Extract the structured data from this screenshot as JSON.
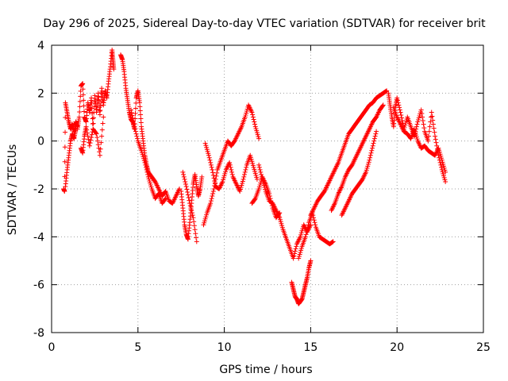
{
  "chart_data": {
    "type": "scatter",
    "title": "Day 296 of 2025, Sidereal Day-to-day VTEC variation (SDTVAR) for receiver brit",
    "xlabel": "GPS time / hours",
    "ylabel": "SDTVAR / TECUs",
    "xlim": [
      0,
      25
    ],
    "ylim": [
      -8,
      4
    ],
    "xticks": [
      0,
      5,
      10,
      15,
      20,
      25
    ],
    "yticks": [
      -8,
      -6,
      -4,
      -2,
      0,
      2,
      4
    ],
    "grid": true,
    "marker": "+",
    "series": [
      {
        "name": "SDTVAR",
        "color": "#ff0000",
        "segments": [
          {
            "x": [
              0.7,
              0.75,
              0.8,
              0.9,
              1.0,
              1.1,
              1.2,
              1.3,
              1.4,
              1.5
            ],
            "y": [
              -2.0,
              -2.1,
              1.6,
              1.2,
              0.8,
              0.5,
              0.7,
              0.4,
              0.8,
              0.6
            ]
          },
          {
            "x": [
              0.8,
              0.9,
              1.0,
              1.1,
              1.2,
              1.3,
              1.4
            ],
            "y": [
              -1.9,
              -1.2,
              -0.6,
              0.0,
              0.3,
              0.1,
              0.5
            ]
          },
          {
            "x": [
              1.5,
              1.6,
              1.7,
              1.8,
              1.9,
              2.0,
              2.1,
              2.2,
              2.3,
              2.4,
              2.5,
              2.6,
              2.7,
              2.8,
              2.9,
              3.0,
              3.1,
              3.2,
              3.3,
              3.4,
              3.5,
              3.55,
              3.6
            ],
            "y": [
              0.5,
              1.0,
              2.3,
              2.4,
              1.0,
              0.8,
              1.6,
              1.2,
              1.8,
              0.5,
              1.9,
              1.2,
              2.0,
              1.1,
              2.2,
              1.5,
              2.1,
              1.8,
              2.5,
              3.1,
              3.8,
              3.4,
              3.0
            ]
          },
          {
            "x": [
              1.7,
              1.8,
              1.9,
              2.0,
              2.2,
              2.4,
              2.6,
              2.8,
              3.0
            ],
            "y": [
              -0.3,
              -0.5,
              0.2,
              0.6,
              -0.2,
              0.5,
              0.3,
              -0.6,
              1.0
            ]
          },
          {
            "x": [
              4.0,
              4.1,
              4.2,
              4.3,
              4.4,
              4.5,
              4.6,
              4.7,
              4.8,
              4.9,
              5.0,
              5.1,
              5.2,
              5.3,
              5.4,
              5.5,
              5.6,
              5.8,
              6.0,
              6.2,
              6.4,
              6.6,
              6.8,
              7.0,
              7.2,
              7.4
            ],
            "y": [
              3.6,
              3.4,
              2.9,
              2.2,
              1.7,
              1.2,
              0.9,
              0.8,
              0.5,
              1.8,
              2.1,
              1.6,
              0.6,
              0.0,
              -0.6,
              -1.0,
              -1.3,
              -1.5,
              -1.7,
              -2.0,
              -2.3,
              -2.1,
              -2.5,
              -2.6,
              -2.3,
              -2.0
            ]
          },
          {
            "x": [
              4.6,
              4.8,
              5.0,
              5.2,
              5.4,
              5.6,
              5.8,
              6.0,
              6.2,
              6.4,
              6.6
            ],
            "y": [
              1.3,
              0.6,
              0.0,
              -0.4,
              -0.9,
              -1.5,
              -2.0,
              -2.4,
              -2.2,
              -2.6,
              -2.4
            ]
          },
          {
            "x": [
              7.5,
              7.6,
              7.7,
              7.8,
              7.9,
              8.0,
              8.1,
              8.2,
              8.3,
              8.4,
              8.5,
              8.6,
              8.7
            ],
            "y": [
              -2.1,
              -2.8,
              -3.5,
              -3.9,
              -4.1,
              -3.4,
              -2.6,
              -1.8,
              -1.4,
              -1.9,
              -2.3,
              -2.0,
              -1.5
            ]
          },
          {
            "x": [
              7.6,
              7.8,
              8.0,
              8.2,
              8.4
            ],
            "y": [
              -1.3,
              -1.9,
              -2.6,
              -3.2,
              -4.2
            ]
          },
          {
            "x": [
              8.8,
              9.0,
              9.2,
              9.4,
              9.6,
              9.8,
              10.0,
              10.2,
              10.4,
              10.6,
              10.8,
              11.0,
              11.2,
              11.4,
              11.6,
              11.8,
              12.0
            ],
            "y": [
              -3.5,
              -3.0,
              -2.6,
              -2.0,
              -1.2,
              -0.8,
              -0.4,
              0.0,
              -0.2,
              0.0,
              0.3,
              0.6,
              1.0,
              1.5,
              1.2,
              0.6,
              0.1
            ]
          },
          {
            "x": [
              8.9,
              9.1,
              9.3,
              9.5,
              9.7,
              9.9,
              10.1,
              10.3,
              10.5,
              10.7,
              10.9,
              11.1,
              11.3,
              11.5,
              11.7,
              11.9
            ],
            "y": [
              -0.1,
              -0.6,
              -1.2,
              -1.9,
              -2.0,
              -1.7,
              -1.2,
              -0.9,
              -1.5,
              -1.8,
              -2.1,
              -1.6,
              -1.0,
              -0.6,
              -1.1,
              -1.6
            ]
          },
          {
            "x": [
              12.0,
              12.2,
              12.4,
              12.6,
              12.8,
              13.0,
              13.2,
              13.4,
              13.6,
              13.8,
              14.0,
              14.2,
              14.4,
              14.6,
              14.8,
              15.0
            ],
            "y": [
              -1.0,
              -1.6,
              -2.1,
              -2.5,
              -2.6,
              -2.9,
              -3.2,
              -3.7,
              -4.1,
              -4.5,
              -4.9,
              -4.3,
              -4.0,
              -3.5,
              -3.8,
              -3.5
            ]
          },
          {
            "x": [
              11.6,
              11.8,
              12.0,
              12.2,
              12.4,
              12.6,
              12.8,
              13.0,
              13.2
            ],
            "y": [
              -2.6,
              -2.4,
              -2.0,
              -1.5,
              -1.8,
              -2.2,
              -2.8,
              -3.2,
              -3.0
            ]
          },
          {
            "x": [
              13.9,
              14.0,
              14.1,
              14.2,
              14.3,
              14.4,
              14.5,
              14.6,
              14.7,
              14.8,
              14.9,
              15.0
            ],
            "y": [
              -5.9,
              -6.2,
              -6.5,
              -6.6,
              -6.8,
              -6.7,
              -6.6,
              -6.3,
              -6.0,
              -5.7,
              -5.3,
              -5.0
            ]
          },
          {
            "x": [
              14.3,
              14.5,
              14.7,
              14.9,
              15.1,
              15.3,
              15.5,
              15.7,
              15.9,
              16.1,
              16.3
            ],
            "y": [
              -4.9,
              -4.4,
              -4.0,
              -3.4,
              -3.0,
              -3.6,
              -4.0,
              -4.1,
              -4.2,
              -4.3,
              -4.2
            ]
          },
          {
            "x": [
              15.0,
              15.2,
              15.4,
              15.6,
              15.8,
              16.0,
              16.2,
              16.4,
              16.6,
              16.8,
              17.0,
              17.2,
              17.4,
              17.6,
              17.8,
              18.0,
              18.2,
              18.4,
              18.6,
              18.8,
              19.0,
              19.2,
              19.4
            ],
            "y": [
              -3.1,
              -2.8,
              -2.5,
              -2.3,
              -2.1,
              -1.8,
              -1.5,
              -1.2,
              -0.9,
              -0.5,
              -0.1,
              0.3,
              0.5,
              0.7,
              0.9,
              1.1,
              1.3,
              1.5,
              1.6,
              1.8,
              1.9,
              2.0,
              2.1
            ]
          },
          {
            "x": [
              16.2,
              16.4,
              16.6,
              16.8,
              17.0,
              17.2,
              17.4,
              17.6,
              17.8,
              18.0,
              18.2,
              18.4,
              18.6,
              18.8,
              19.0,
              19.2
            ],
            "y": [
              -2.9,
              -2.6,
              -2.2,
              -1.9,
              -1.5,
              -1.2,
              -1.0,
              -0.7,
              -0.4,
              -0.1,
              0.2,
              0.5,
              0.8,
              1.0,
              1.3,
              1.5
            ]
          },
          {
            "x": [
              16.8,
              17.0,
              17.2,
              17.4,
              17.6,
              17.8,
              18.0,
              18.2,
              18.4,
              18.6,
              18.8
            ],
            "y": [
              -3.1,
              -2.8,
              -2.5,
              -2.2,
              -2.0,
              -1.8,
              -1.6,
              -1.3,
              -0.8,
              -0.2,
              0.4
            ]
          },
          {
            "x": [
              19.5,
              19.6,
              19.7,
              19.8,
              19.9,
              20.0,
              20.2,
              20.4,
              20.6,
              20.8,
              21.0,
              21.2,
              21.4,
              21.6,
              21.8,
              22.0,
              22.2,
              22.4,
              22.6,
              22.8
            ],
            "y": [
              2.0,
              1.5,
              1.0,
              0.6,
              1.4,
              1.8,
              1.2,
              0.5,
              1.0,
              0.6,
              0.2,
              0.8,
              1.3,
              0.4,
              0.0,
              1.2,
              0.2,
              -0.6,
              -1.2,
              -1.7
            ]
          },
          {
            "x": [
              19.8,
              20.0,
              20.2,
              20.4,
              20.6,
              20.8,
              21.0,
              21.2,
              21.4,
              21.6,
              21.8,
              22.0,
              22.2,
              22.4,
              22.6,
              22.8
            ],
            "y": [
              1.4,
              1.0,
              0.7,
              0.4,
              0.3,
              0.1,
              0.5,
              0.0,
              -0.3,
              -0.2,
              -0.4,
              -0.5,
              -0.6,
              -0.3,
              -0.8,
              -1.3
            ]
          }
        ]
      }
    ]
  }
}
